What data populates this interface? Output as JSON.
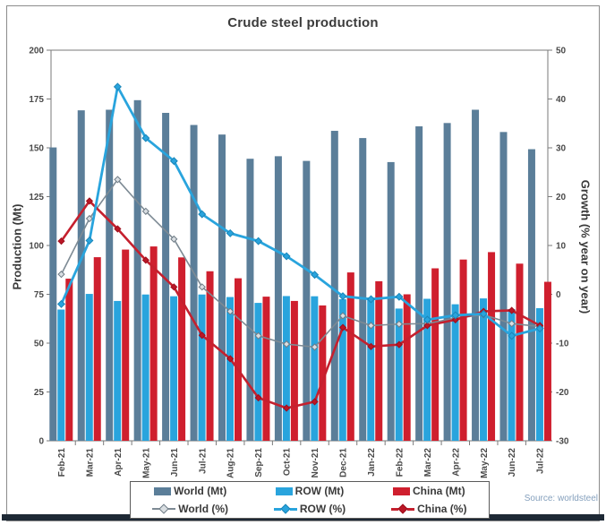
{
  "title": "Crude steel production",
  "source": "Source: worldsteel",
  "colors": {
    "world_bar": "#5b7e99",
    "row_bar": "#29a4dd",
    "china_bar": "#cf1f2e",
    "world_line": "#7d8a94",
    "row_line": "#29a4dd",
    "china_line": "#c5202e",
    "frame": "#8c8c8c",
    "axis": "#7a7a7a",
    "tick_text": "#4a4a4a",
    "title_text": "#3c3c3c",
    "bottom_accent": "#1e2935"
  },
  "chart_data": {
    "type": "bar+line",
    "title": "Crude steel production",
    "grid": false,
    "legend_position": "bottom",
    "categories": [
      "Feb-21",
      "Mar-21",
      "Apr-21",
      "May-21",
      "Jun-21",
      "Jul-21",
      "Aug-21",
      "Sep-21",
      "Oct-21",
      "Nov-21",
      "Dec-21",
      "Jan-22",
      "Feb-22",
      "Mar-22",
      "Apr-22",
      "May-22",
      "Jun-22",
      "Jul-22"
    ],
    "left_axis": {
      "label": "Production (Mt)",
      "min": 0,
      "max": 200,
      "ticks": [
        0,
        25,
        50,
        75,
        100,
        125,
        150,
        175,
        200
      ]
    },
    "right_axis": {
      "label": "Growth (% year on year)",
      "min": -30,
      "max": 50,
      "ticks": [
        -30,
        -20,
        -10,
        0,
        10,
        20,
        30,
        40,
        50
      ]
    },
    "series": [
      {
        "name": "World (Mt)",
        "type": "bar",
        "axis": "left",
        "color": "#5b7e99",
        "values": [
          150.2,
          169.2,
          169.5,
          174.4,
          167.9,
          161.7,
          156.8,
          144.4,
          145.7,
          143.3,
          158.7,
          155.0,
          142.7,
          161.0,
          162.7,
          169.5,
          158.1,
          149.3
        ]
      },
      {
        "name": "ROW (Mt)",
        "type": "bar",
        "axis": "left",
        "color": "#29a4dd",
        "values": [
          67.2,
          75.2,
          71.6,
          74.9,
          74.0,
          74.9,
          73.6,
          70.6,
          74.1,
          74.0,
          72.5,
          73.3,
          67.7,
          72.7,
          69.9,
          72.9,
          67.4,
          67.9
        ]
      },
      {
        "name": "China (Mt)",
        "type": "bar",
        "axis": "left",
        "color": "#cf1f2e",
        "values": [
          83.0,
          94.0,
          97.9,
          99.5,
          93.9,
          86.8,
          83.2,
          73.8,
          71.6,
          69.3,
          86.2,
          81.7,
          75.0,
          88.3,
          92.8,
          96.6,
          90.7,
          81.4
        ]
      },
      {
        "name": "World (%)",
        "type": "line",
        "axis": "right",
        "color": "#7d8a94",
        "marker_fill": "#d9dee2",
        "marker_edge": "#6e7b85",
        "line_width": 1.6,
        "marker_size": 3.4,
        "values": [
          4.1,
          15.5,
          23.5,
          17.0,
          11.3,
          1.5,
          -3.5,
          -8.5,
          -10.2,
          -10.8,
          -4.4,
          -6.4,
          -6.1,
          -6.0,
          -4.9,
          -4.2,
          -6.0,
          -6.6
        ]
      },
      {
        "name": "ROW (%)",
        "type": "line",
        "axis": "right",
        "color": "#29a4dd",
        "marker_fill": "#29a4dd",
        "marker_edge": "#1a85b8",
        "line_width": 2.8,
        "marker_size": 3.8,
        "values": [
          -2.0,
          11.0,
          42.5,
          32.0,
          27.3,
          16.4,
          12.5,
          10.9,
          7.8,
          4.0,
          -0.4,
          -1.0,
          -0.5,
          -5.2,
          -4.3,
          -4.0,
          -8.5,
          -7.0
        ]
      },
      {
        "name": "China (%)",
        "type": "line",
        "axis": "right",
        "color": "#c5202e",
        "marker_fill": "#bb1726",
        "marker_edge": "#9e0f1d",
        "line_width": 2.6,
        "marker_size": 3.4,
        "values": [
          10.9,
          19.1,
          13.4,
          7.0,
          1.5,
          -8.4,
          -13.2,
          -21.2,
          -23.3,
          -22.0,
          -6.8,
          -10.7,
          -10.3,
          -6.4,
          -5.2,
          -3.5,
          -3.3,
          -6.4
        ]
      }
    ]
  }
}
